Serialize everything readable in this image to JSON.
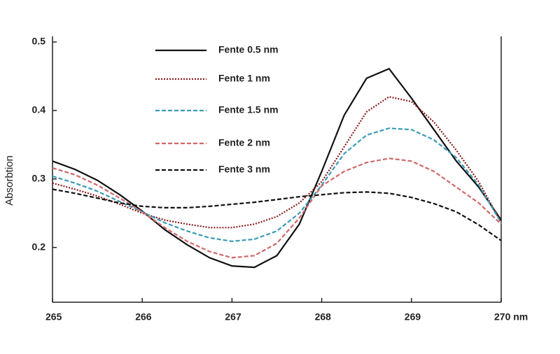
{
  "chart_data": {
    "type": "line",
    "y_label": "Absorbtion",
    "x": [
      265,
      265.25,
      265.5,
      265.75,
      266,
      266.25,
      266.5,
      266.75,
      267,
      267.25,
      267.5,
      267.75,
      268,
      268.25,
      268.5,
      268.75,
      269,
      269.25,
      269.5,
      269.75,
      270
    ],
    "series": [
      {
        "name": "Fente 0.5 nm",
        "color": "#111111",
        "dash": "solid",
        "values": [
          0.326,
          0.314,
          0.298,
          0.277,
          0.253,
          0.226,
          0.204,
          0.185,
          0.173,
          0.171,
          0.188,
          0.234,
          0.311,
          0.393,
          0.447,
          0.461,
          0.418,
          0.372,
          0.326,
          0.288,
          0.24
        ]
      },
      {
        "name": "Fente 1 nm",
        "color": "#8b1a1a",
        "dash": "dotted",
        "values": [
          0.294,
          0.285,
          0.275,
          0.263,
          0.25,
          0.24,
          0.234,
          0.229,
          0.229,
          0.234,
          0.245,
          0.265,
          0.296,
          0.347,
          0.398,
          0.42,
          0.413,
          0.383,
          0.342,
          0.296,
          0.236
        ]
      },
      {
        "name": "Fente 1.5 nm",
        "color": "#3a9bb5",
        "dash": "dashed",
        "values": [
          0.304,
          0.294,
          0.282,
          0.267,
          0.252,
          0.236,
          0.224,
          0.214,
          0.209,
          0.212,
          0.224,
          0.25,
          0.291,
          0.337,
          0.364,
          0.374,
          0.372,
          0.357,
          0.331,
          0.291,
          0.236
        ]
      },
      {
        "name": "Fente 2 nm",
        "color": "#d06868",
        "dash": "dashed",
        "values": [
          0.316,
          0.306,
          0.291,
          0.272,
          0.252,
          0.229,
          0.209,
          0.194,
          0.185,
          0.188,
          0.206,
          0.243,
          0.29,
          0.311,
          0.324,
          0.33,
          0.326,
          0.311,
          0.288,
          0.265,
          0.234
        ]
      },
      {
        "name": "Fente 3 nm",
        "color": "#111111",
        "dash": "dashed",
        "values": [
          0.285,
          0.279,
          0.272,
          0.265,
          0.26,
          0.258,
          0.258,
          0.26,
          0.263,
          0.266,
          0.27,
          0.274,
          0.277,
          0.28,
          0.281,
          0.279,
          0.273,
          0.264,
          0.252,
          0.233,
          0.21
        ]
      }
    ],
    "xlim": [
      265,
      270
    ],
    "xticks": [
      265,
      266,
      267,
      268,
      269,
      {
        "value": 270,
        "label": "270 nm"
      }
    ],
    "ylim": [
      0.12,
      0.5
    ],
    "yticks": [
      0.2,
      0.3,
      0.4,
      0.5
    ],
    "grid": false,
    "legend": "upper-left"
  }
}
